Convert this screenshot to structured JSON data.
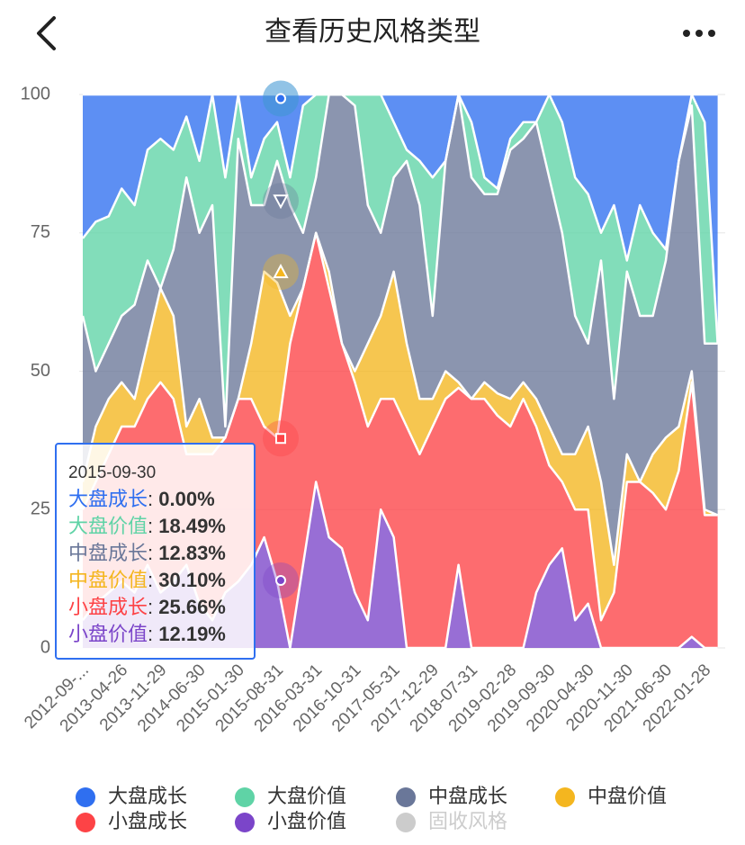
{
  "header": {
    "title": "查看历史风格类型"
  },
  "chart_data": {
    "type": "stacked-area",
    "categories": [
      "2012-09-...",
      null,
      null,
      "2013-04-26",
      null,
      null,
      "2013-11-29",
      null,
      null,
      "2014-06-30",
      null,
      null,
      "2015-01-30",
      null,
      null,
      "2015-08-31",
      null,
      null,
      "2016-03-31",
      null,
      null,
      "2016-10-31",
      null,
      null,
      "2017-05-31",
      null,
      null,
      "2017-12-29",
      null,
      null,
      "2018-07-31",
      null,
      null,
      "2019-02-28",
      null,
      null,
      "2019-09-30",
      null,
      null,
      "2020-04-30",
      null,
      null,
      "2020-11-30",
      null,
      null,
      "2021-06-30",
      null,
      null,
      "2022-01-28",
      null
    ],
    "series": [
      {
        "name": "大盘成长",
        "color": "#2f6ff0",
        "values": [
          26,
          23,
          22,
          17,
          20,
          10,
          8,
          10,
          4,
          12,
          0,
          15,
          0,
          15,
          8,
          5,
          15,
          2,
          0,
          0,
          0,
          0,
          0,
          0,
          5,
          10,
          12,
          15,
          12,
          0,
          5,
          15,
          17,
          8,
          5,
          5,
          0,
          5,
          15,
          18,
          25,
          20,
          30,
          20,
          25,
          28,
          12,
          0,
          5,
          45
        ]
      },
      {
        "name": "大盘价值",
        "color": "#5fd3a6",
        "values": [
          14,
          27,
          23,
          23,
          18,
          20,
          27,
          18,
          11,
          13,
          20,
          45,
          8,
          5,
          12,
          7,
          5,
          23,
          15,
          0,
          0,
          2,
          20,
          25,
          10,
          2,
          8,
          25,
          0,
          0,
          10,
          3,
          1,
          2,
          3,
          0,
          15,
          20,
          25,
          27,
          5,
          35,
          2,
          20,
          15,
          2,
          0,
          2,
          40,
          0
        ]
      },
      {
        "name": "中盘成长",
        "color": "#6a7799",
        "values": [
          30,
          10,
          10,
          12,
          17,
          15,
          0,
          12,
          45,
          30,
          42,
          2,
          47,
          25,
          12,
          22,
          20,
          10,
          10,
          32,
          45,
          48,
          25,
          15,
          17,
          33,
          35,
          15,
          38,
          52,
          40,
          34,
          36,
          45,
          44,
          50,
          45,
          40,
          25,
          15,
          40,
          30,
          33,
          30,
          25,
          32,
          48,
          48,
          30,
          31
        ]
      },
      {
        "name": "中盘价值",
        "color": "#f4b61f",
        "values": [
          5,
          10,
          10,
          8,
          5,
          10,
          17,
          15,
          5,
          10,
          3,
          0,
          0,
          10,
          28,
          28,
          5,
          0,
          0,
          3,
          0,
          2,
          15,
          15,
          23,
          15,
          10,
          5,
          5,
          1,
          0,
          3,
          4,
          5,
          3,
          5,
          7,
          5,
          10,
          15,
          25,
          5,
          5,
          0,
          7,
          13,
          8,
          2,
          1,
          0
        ]
      },
      {
        "name": "小盘成长",
        "color": "#fd4346",
        "values": [
          20,
          22,
          25,
          28,
          30,
          30,
          38,
          33,
          20,
          27,
          30,
          28,
          33,
          30,
          20,
          26,
          55,
          50,
          45,
          45,
          37,
          38,
          35,
          20,
          25,
          40,
          35,
          40,
          45,
          32,
          45,
          45,
          42,
          40,
          45,
          30,
          18,
          12,
          20,
          17,
          5,
          10,
          30,
          30,
          28,
          25,
          32,
          46,
          24,
          24
        ]
      },
      {
        "name": "小盘价值",
        "color": "#7b45c9",
        "values": [
          5,
          8,
          10,
          12,
          10,
          15,
          10,
          12,
          15,
          8,
          5,
          10,
          12,
          15,
          20,
          12,
          0,
          15,
          30,
          20,
          18,
          10,
          5,
          25,
          20,
          0,
          0,
          0,
          0,
          15,
          0,
          0,
          0,
          0,
          0,
          10,
          15,
          18,
          5,
          8,
          0,
          0,
          0,
          0,
          0,
          0,
          0,
          2,
          0,
          0
        ]
      },
      {
        "name": "固收风格",
        "color": "#cccccc",
        "hidden": true,
        "values": [
          0,
          0,
          0,
          0,
          0,
          0,
          0,
          0,
          0,
          0,
          0,
          0,
          0,
          0,
          0,
          0,
          0,
          0,
          0,
          0,
          0,
          0,
          0,
          0,
          0,
          0,
          0,
          0,
          0,
          0,
          0,
          0,
          0,
          0,
          0,
          0,
          0,
          0,
          0,
          0,
          0,
          0,
          0,
          0,
          0,
          0,
          0,
          0,
          0,
          0
        ]
      }
    ],
    "ylim": [
      0,
      100
    ],
    "yticks": [
      0,
      25,
      50,
      75,
      100
    ],
    "grid": true,
    "legend": "bottom",
    "tooltip": {
      "date": "2015-09-30",
      "separator": ": ",
      "values": [
        0,
        18.49,
        12.83,
        30.1,
        25.66,
        12.19
      ],
      "value_labels": [
        "0.00%",
        "18.49%",
        "12.83%",
        "30.10%",
        "25.66%",
        "12.19%"
      ]
    }
  }
}
